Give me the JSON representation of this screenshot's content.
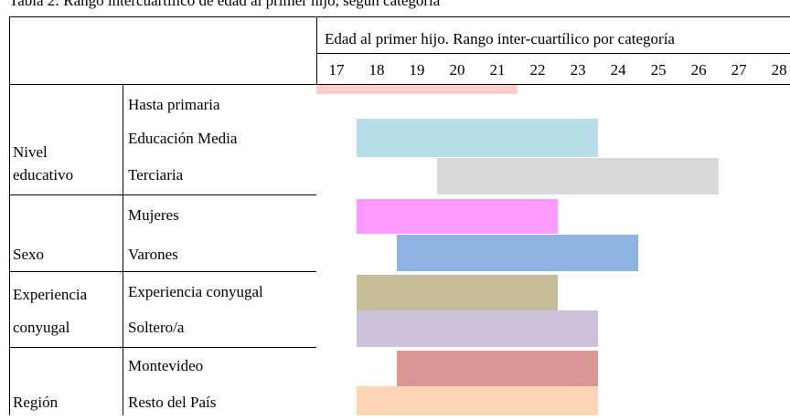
{
  "chart_data": {
    "type": "floating_bar",
    "title": "Tabla 2: Rango intercuartílico de edad al primer hijo, según categoría",
    "subtitle": "Edad al primer hijo. Rango inter-cuartílico por categoría",
    "xlim": [
      16.5,
      28.27
    ],
    "xticks": [
      17,
      18,
      19,
      20,
      21,
      22,
      23,
      24,
      25,
      26,
      27,
      28
    ],
    "groups": [
      {
        "label": [
          "Nivel",
          "educativo"
        ],
        "categories": [
          "Hasta primaria",
          "Educación Media",
          "Terciaria"
        ],
        "ranges": [
          [
            16.5,
            21.5
          ],
          [
            17.5,
            23.5
          ],
          [
            19.5,
            26.5
          ]
        ],
        "colors": [
          "#ffcccc",
          "#b7dde8",
          "#d9d9d9"
        ]
      },
      {
        "label": [
          "Sexo"
        ],
        "categories": [
          "Mujeres",
          "Varones"
        ],
        "ranges": [
          [
            17.5,
            22.5
          ],
          [
            18.5,
            24.5
          ]
        ],
        "colors": [
          "#ff99ff",
          "#8eb4e3"
        ]
      },
      {
        "label": [
          "Experiencia",
          "conyugal"
        ],
        "categories": [
          "Experiencia conyugal",
          "Soltero/a"
        ],
        "ranges": [
          [
            17.5,
            22.5
          ],
          [
            17.5,
            23.5
          ]
        ],
        "colors": [
          "#c4bd97",
          "#ccc0da"
        ]
      },
      {
        "label": [
          "Región"
        ],
        "categories": [
          "Montevideo",
          "Resto del País"
        ],
        "ranges": [
          [
            18.5,
            23.5
          ],
          [
            17.5,
            23.5
          ]
        ],
        "colors": [
          "#d99694",
          "#fcd5b5"
        ]
      }
    ]
  }
}
